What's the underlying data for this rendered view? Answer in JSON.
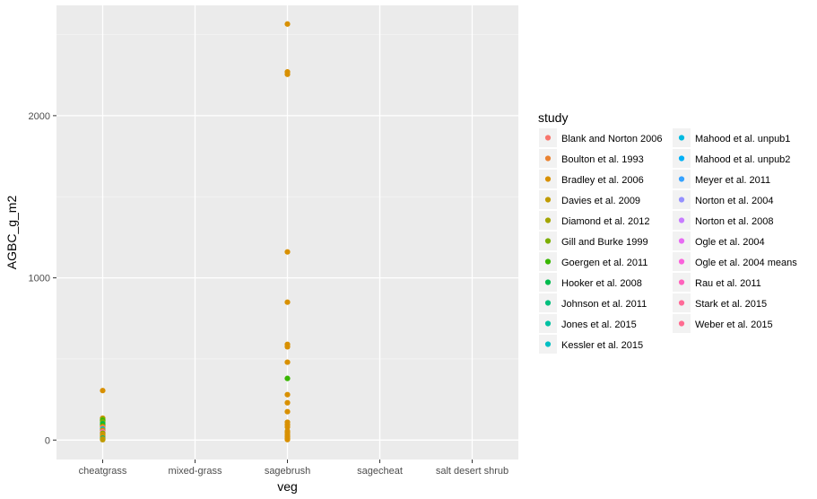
{
  "chart_data": {
    "type": "scatter",
    "xlabel": "veg",
    "ylabel": "AGBC_g_m2",
    "categories": [
      "cheatgrass",
      "mixed-grass",
      "sagebrush",
      "sagecheat",
      "salt desert shrub"
    ],
    "yticks": [
      0,
      1000,
      2000
    ],
    "ylim": [
      -120,
      2680
    ],
    "grid": true,
    "legend": {
      "title": "study",
      "placement": "right",
      "columns": 2,
      "entries": [
        {
          "name": "Blank and Norton 2006",
          "color": "#F8766D"
        },
        {
          "name": "Boulton et al. 1993",
          "color": "#EA8331"
        },
        {
          "name": "Bradley et al. 2006",
          "color": "#D89000"
        },
        {
          "name": "Davies et al. 2009",
          "color": "#C09B00"
        },
        {
          "name": "Diamond et al. 2012",
          "color": "#A3A500"
        },
        {
          "name": "Gill and Burke 1999",
          "color": "#7CAE00"
        },
        {
          "name": "Goergen et al. 2011",
          "color": "#39B600"
        },
        {
          "name": "Hooker et al. 2008",
          "color": "#00BB4E"
        },
        {
          "name": "Johnson et al. 2011",
          "color": "#00BF7D"
        },
        {
          "name": "Jones et al. 2015",
          "color": "#00C1A3"
        },
        {
          "name": "Kessler et al. 2015",
          "color": "#00BFC4"
        },
        {
          "name": "Mahood et al. unpub1",
          "color": "#00BAE0"
        },
        {
          "name": "Mahood et al. unpub2",
          "color": "#00B0F6"
        },
        {
          "name": "Meyer et al. 2011",
          "color": "#35A2FF"
        },
        {
          "name": "Norton et al. 2004",
          "color": "#9590FF"
        },
        {
          "name": "Norton et al. 2008",
          "color": "#C77CFF"
        },
        {
          "name": "Ogle et al. 2004",
          "color": "#E76BF3"
        },
        {
          "name": "Ogle et al. 2004 means",
          "color": "#FA62DB"
        },
        {
          "name": "Rau et al. 2011",
          "color": "#FF62BC"
        },
        {
          "name": "Stark et al. 2015",
          "color": "#FF6A98"
        },
        {
          "name": "Weber et al. 2015",
          "color": "#FF6C91"
        }
      ]
    },
    "points": [
      {
        "x": "cheatgrass",
        "y": 305,
        "color": "#D89000"
      },
      {
        "x": "cheatgrass",
        "y": 135,
        "color": "#D89000"
      },
      {
        "x": "cheatgrass",
        "y": 128,
        "color": "#7CAE00"
      },
      {
        "x": "cheatgrass",
        "y": 120,
        "color": "#39B600"
      },
      {
        "x": "cheatgrass",
        "y": 112,
        "color": "#7CAE00"
      },
      {
        "x": "cheatgrass",
        "y": 100,
        "color": "#00BB4E"
      },
      {
        "x": "cheatgrass",
        "y": 90,
        "color": "#39B600"
      },
      {
        "x": "cheatgrass",
        "y": 82,
        "color": "#D89000"
      },
      {
        "x": "cheatgrass",
        "y": 75,
        "color": "#F8766D"
      },
      {
        "x": "cheatgrass",
        "y": 68,
        "color": "#00BFC4"
      },
      {
        "x": "cheatgrass",
        "y": 60,
        "color": "#D89000"
      },
      {
        "x": "cheatgrass",
        "y": 50,
        "color": "#FF62BC"
      },
      {
        "x": "cheatgrass",
        "y": 42,
        "color": "#7CAE00"
      },
      {
        "x": "cheatgrass",
        "y": 35,
        "color": "#D89000"
      },
      {
        "x": "cheatgrass",
        "y": 28,
        "color": "#C09B00"
      },
      {
        "x": "cheatgrass",
        "y": 20,
        "color": "#D89000"
      },
      {
        "x": "cheatgrass",
        "y": 12,
        "color": "#00BF7D"
      },
      {
        "x": "cheatgrass",
        "y": 6,
        "color": "#D89000"
      },
      {
        "x": "cheatgrass",
        "y": 2,
        "color": "#C09B00"
      },
      {
        "x": "sagebrush",
        "y": 2565,
        "color": "#D89000"
      },
      {
        "x": "sagebrush",
        "y": 2270,
        "color": "#D89000"
      },
      {
        "x": "sagebrush",
        "y": 2255,
        "color": "#D89000"
      },
      {
        "x": "sagebrush",
        "y": 1160,
        "color": "#D89000"
      },
      {
        "x": "sagebrush",
        "y": 850,
        "color": "#D89000"
      },
      {
        "x": "sagebrush",
        "y": 590,
        "color": "#D89000"
      },
      {
        "x": "sagebrush",
        "y": 575,
        "color": "#D89000"
      },
      {
        "x": "sagebrush",
        "y": 480,
        "color": "#D89000"
      },
      {
        "x": "sagebrush",
        "y": 380,
        "color": "#39B600"
      },
      {
        "x": "sagebrush",
        "y": 280,
        "color": "#D89000"
      },
      {
        "x": "sagebrush",
        "y": 230,
        "color": "#D89000"
      },
      {
        "x": "sagebrush",
        "y": 175,
        "color": "#D89000"
      },
      {
        "x": "sagebrush",
        "y": 110,
        "color": "#D89000"
      },
      {
        "x": "sagebrush",
        "y": 95,
        "color": "#D89000"
      },
      {
        "x": "sagebrush",
        "y": 80,
        "color": "#D89000"
      },
      {
        "x": "sagebrush",
        "y": 55,
        "color": "#D89000"
      },
      {
        "x": "sagebrush",
        "y": 45,
        "color": "#D89000"
      },
      {
        "x": "sagebrush",
        "y": 30,
        "color": "#D89000"
      },
      {
        "x": "sagebrush",
        "y": 20,
        "color": "#D89000"
      },
      {
        "x": "sagebrush",
        "y": 10,
        "color": "#D89000"
      },
      {
        "x": "sagebrush",
        "y": 3,
        "color": "#D89000"
      }
    ]
  }
}
